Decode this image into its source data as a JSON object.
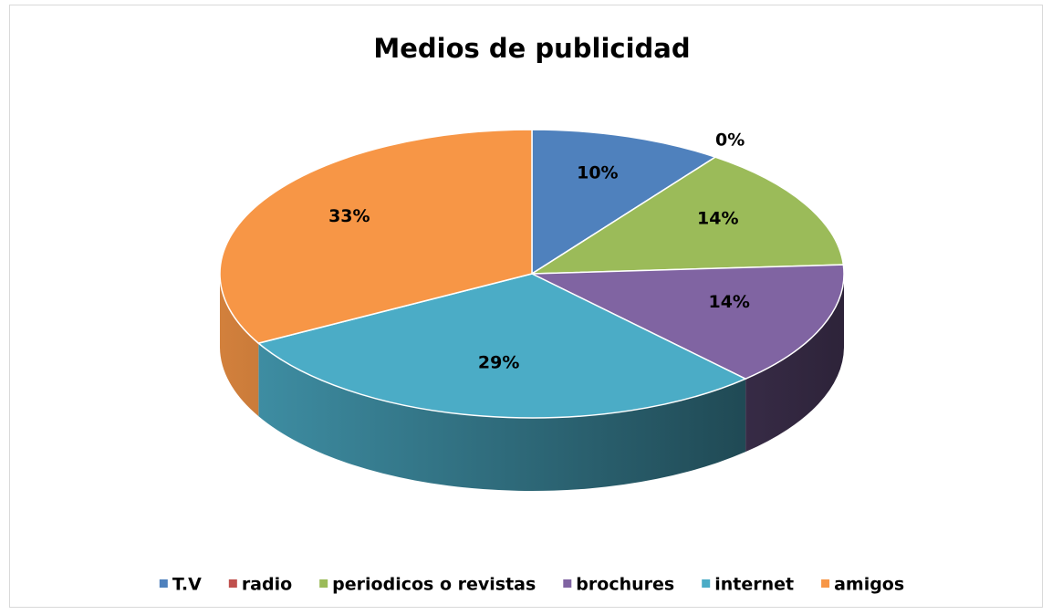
{
  "chart_data": {
    "type": "pie3d",
    "title": "Medios de publicidad",
    "categories": [
      "T.V",
      "radio",
      "periodicos o revistas",
      "brochures",
      "internet",
      "amigos"
    ],
    "values": [
      10,
      0,
      14,
      14,
      29,
      33
    ],
    "value_labels": [
      "10%",
      "0%",
      "14%",
      "14%",
      "29%",
      "33%"
    ],
    "colors": [
      "#4f81bd",
      "#c0504d",
      "#9bbb59",
      "#8064a2",
      "#4bacc6",
      "#f79646"
    ],
    "legend": "bottom"
  }
}
